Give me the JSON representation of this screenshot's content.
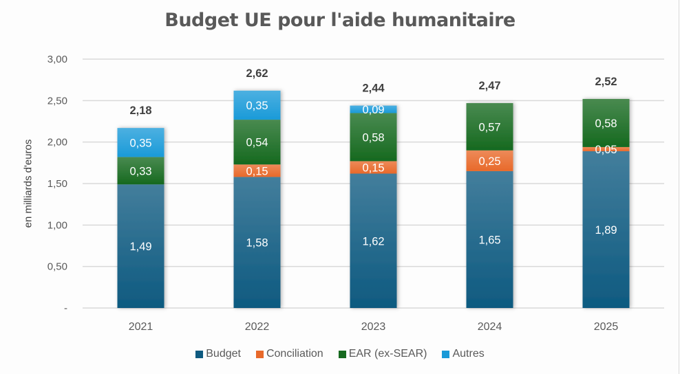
{
  "chart_data": {
    "type": "bar",
    "stacked": true,
    "title": "Budget UE pour l'aide humanitaire",
    "xlabel": "",
    "ylabel": "en milliards d'euros",
    "ylim": [
      0,
      3.0
    ],
    "yticks": [
      0,
      0.5,
      1.0,
      1.5,
      2.0,
      2.5,
      3.0
    ],
    "ytick_labels": [
      "-",
      "0,50",
      "1,00",
      "1,50",
      "2,00",
      "2,50",
      "3,00"
    ],
    "grid": true,
    "legend_position": "bottom",
    "categories": [
      "2021",
      "2022",
      "2023",
      "2024",
      "2025"
    ],
    "series": [
      {
        "name": "Budget",
        "color": "#0e5a80",
        "values": [
          1.49,
          1.58,
          1.62,
          1.65,
          1.89
        ],
        "labels": [
          "1,49",
          "1,58",
          "1,62",
          "1,65",
          "1,89"
        ]
      },
      {
        "name": "Conciliation",
        "color": "#e8692a",
        "values": [
          0,
          0.15,
          0.15,
          0.25,
          0.05
        ],
        "labels": [
          "",
          "0,15",
          "0,15",
          "0,25",
          "0,05"
        ]
      },
      {
        "name": "EAR (ex-SEAR)",
        "color": "#16691f",
        "values": [
          0.33,
          0.54,
          0.58,
          0.57,
          0.58
        ],
        "labels": [
          "0,33",
          "0,54",
          "0,58",
          "0,57",
          "0,58"
        ]
      },
      {
        "name": "Autres",
        "color": "#1a9ad8",
        "values": [
          0.35,
          0.35,
          0.09,
          0,
          0
        ],
        "labels": [
          "0,35",
          "0,35",
          "0,09",
          "",
          ""
        ]
      }
    ],
    "totals": [
      2.18,
      2.62,
      2.44,
      2.47,
      2.52
    ],
    "total_labels": [
      "2,18",
      "2,62",
      "2,44",
      "2,47",
      "2,52"
    ]
  }
}
